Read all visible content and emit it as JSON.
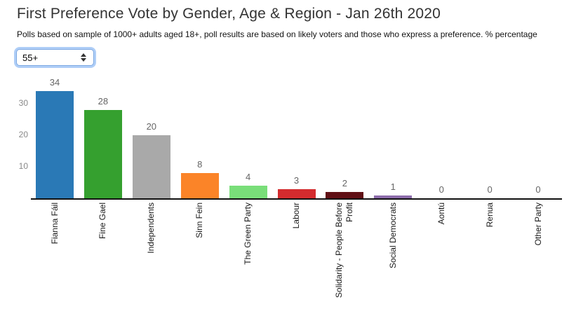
{
  "header": {
    "title": "First Preference Vote by Gender, Age & Region - Jan 26th 2020",
    "subtitle": "Polls based on sample of 1000+ adults aged 18+, poll results are based on likely voters and those who express a preference. % percentage"
  },
  "filter": {
    "selected_option": "55+"
  },
  "chart_data": {
    "type": "bar",
    "title": "First Preference Vote by Gender, Age & Region - Jan 26th 2020",
    "categories": [
      "Fianna Fáil",
      "Fine Gael",
      "Independents",
      "Sinn Fein",
      "The Green Party",
      "Labour",
      "Solidarity - People Before Profit",
      "Social Democrats",
      "Aontú",
      "Renua",
      "Other Party"
    ],
    "values": [
      34,
      28,
      20,
      8,
      4,
      3,
      2,
      1,
      0,
      0,
      0
    ],
    "bar_colors": [
      "#2a79b6",
      "#35a02f",
      "#a9a9a9",
      "#fb8428",
      "#79de79",
      "#d42b2e",
      "#600f15",
      "#8d6cab",
      "#cccccc",
      "#cccccc",
      "#cccccc"
    ],
    "value_labels": [
      "34",
      "28",
      "20",
      "8",
      "4",
      "3",
      "2",
      "1",
      "0",
      "0",
      "0"
    ],
    "yticks": [
      10,
      20,
      30
    ],
    "ylim": [
      0,
      36
    ],
    "xlabel": "",
    "ylabel": "",
    "grid": false,
    "legend": "none",
    "units": "% percentage"
  },
  "colors": {
    "axis": "#111111",
    "ytick_text": "#888888",
    "value_text": "#666666",
    "xlabel_text": "#1a1a1a",
    "focus_ring": "#6ea5f0"
  }
}
